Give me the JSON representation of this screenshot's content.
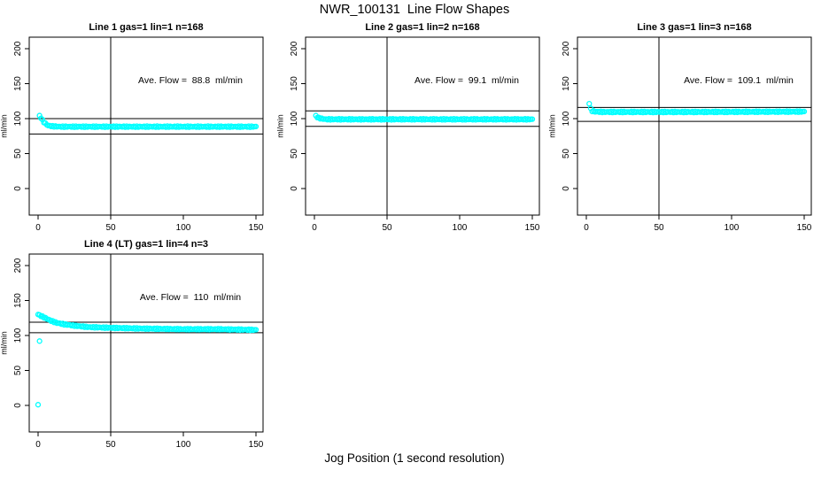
{
  "page_title": "NWR_100131  Line Flow Shapes",
  "xlabel": "Jog Position (1 second resolution)",
  "colors": {
    "marker": "#00ffff",
    "axis": "#000000",
    "text": "#000000",
    "background": "#ffffff"
  },
  "chart_data": [
    {
      "type": "scatter",
      "title": "Line 1 gas=1 lin=1 n=168",
      "annotation": "Ave. Flow =  88.8  ml/min",
      "ave_flow_ml_min": 88.8,
      "ylabel": "ml/min",
      "x_ticks": [
        0,
        50,
        100,
        150
      ],
      "y_ticks": [
        0,
        50,
        100,
        150,
        200
      ],
      "xlim": [
        0,
        155
      ],
      "ylim": [
        0,
        215
      ],
      "grid": false,
      "vline_x": 50,
      "hlines": [
        100,
        78
      ],
      "series_anchors": [
        [
          1,
          104
        ],
        [
          2,
          101
        ],
        [
          3,
          98
        ],
        [
          4,
          95
        ],
        [
          5,
          93
        ],
        [
          7,
          90
        ],
        [
          10,
          89
        ],
        [
          15,
          88.5
        ],
        [
          60,
          88.5
        ],
        [
          150,
          88.5
        ]
      ],
      "outlier_points": []
    },
    {
      "type": "scatter",
      "title": "Line 2 gas=1 lin=2 n=168",
      "annotation": "Ave. Flow =  99.1  ml/min",
      "ave_flow_ml_min": 99.1,
      "ylabel": "ml/min",
      "x_ticks": [
        0,
        50,
        100,
        150
      ],
      "y_ticks": [
        0,
        50,
        100,
        150,
        200
      ],
      "xlim": [
        0,
        155
      ],
      "ylim": [
        0,
        215
      ],
      "grid": false,
      "vline_x": 50,
      "hlines": [
        111,
        89
      ],
      "series_anchors": [
        [
          1,
          104
        ],
        [
          2,
          102
        ],
        [
          3,
          101
        ],
        [
          5,
          100
        ],
        [
          8,
          99
        ],
        [
          60,
          99
        ],
        [
          150,
          99
        ]
      ],
      "outlier_points": []
    },
    {
      "type": "scatter",
      "title": "Line 3 gas=1 lin=3 n=168",
      "annotation": "Ave. Flow =  109.1  ml/min",
      "ave_flow_ml_min": 109.1,
      "ylabel": "ml/min",
      "x_ticks": [
        0,
        50,
        100,
        150
      ],
      "y_ticks": [
        0,
        50,
        100,
        150,
        200
      ],
      "xlim": [
        0,
        155
      ],
      "ylim": [
        0,
        215
      ],
      "grid": false,
      "vline_x": 50,
      "hlines": [
        116,
        96
      ],
      "series_anchors": [
        [
          2,
          122
        ],
        [
          3,
          114
        ],
        [
          4,
          111
        ],
        [
          6,
          110
        ],
        [
          12,
          109.5
        ],
        [
          80,
          109.5
        ],
        [
          150,
          110
        ]
      ],
      "outlier_points": []
    },
    {
      "type": "scatter",
      "title": "Line 4 (LT) gas=1 lin=4 n=3",
      "annotation": "Ave. Flow =  110  ml/min",
      "ave_flow_ml_min": 110,
      "ylabel": "ml/min",
      "x_ticks": [
        0,
        50,
        100,
        150
      ],
      "y_ticks": [
        0,
        50,
        100,
        150,
        200
      ],
      "xlim": [
        0,
        155
      ],
      "ylim": [
        0,
        215
      ],
      "grid": false,
      "vline_x": 50,
      "hlines": [
        119,
        104
      ],
      "series_anchors": [
        [
          0,
          130
        ],
        [
          2,
          128
        ],
        [
          4,
          126
        ],
        [
          6,
          124
        ],
        [
          9,
          121
        ],
        [
          13,
          118
        ],
        [
          18,
          116
        ],
        [
          25,
          114
        ],
        [
          35,
          112
        ],
        [
          50,
          111
        ],
        [
          70,
          110
        ],
        [
          100,
          109
        ],
        [
          125,
          109
        ],
        [
          150,
          108
        ]
      ],
      "outlier_points": [
        [
          1,
          92
        ],
        [
          0,
          1
        ]
      ]
    }
  ]
}
